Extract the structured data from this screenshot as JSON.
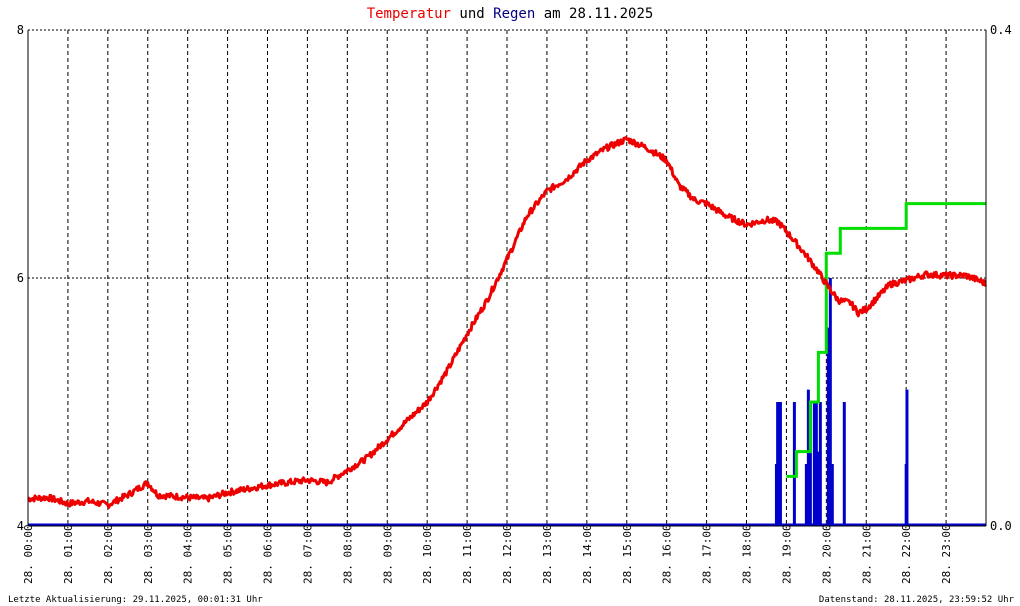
{
  "title": {
    "part1": "Temperatur",
    "part2": " und ",
    "part3": "Regen",
    "part4": " am 28.11.2025",
    "color1": "#ee0000",
    "color2": "#000000",
    "color3": "#000080",
    "color4": "#000000"
  },
  "footer": {
    "left": "Letzte Aktualisierung: 29.11.2025, 00:01:31 Uhr",
    "right": "Datenstand: 28.11.2025, 23:59:52 Uhr"
  },
  "chart_data": {
    "type": "line",
    "y_left": {
      "range": [
        4,
        8
      ],
      "ticks": [
        "4",
        "6",
        "8"
      ]
    },
    "y_right": {
      "range": [
        0.0,
        0.4
      ],
      "ticks": [
        "0.0",
        "0.4"
      ]
    },
    "x_range_hours": [
      0,
      24
    ],
    "x_ticks": [
      "28. 00:00",
      "28. 01:00",
      "28. 02:00",
      "28. 03:00",
      "28. 04:00",
      "28. 05:00",
      "28. 06:00",
      "28. 07:00",
      "28. 08:00",
      "28. 09:00",
      "28. 10:00",
      "28. 11:00",
      "28. 12:00",
      "28. 13:00",
      "28. 14:00",
      "28. 15:00",
      "28. 16:00",
      "28. 17:00",
      "28. 18:00",
      "28. 19:00",
      "28. 20:00",
      "28. 21:00",
      "28. 22:00",
      "28. 23:00"
    ],
    "grid": true,
    "colors": {
      "temperature": "#ee0000",
      "rain_rate": "#0000cc",
      "rain_sum": "#00dd00",
      "grid": "#000000"
    },
    "series": [
      {
        "key": "temperature",
        "axis": "left",
        "points": [
          [
            0.0,
            4.22
          ],
          [
            0.5,
            4.23
          ],
          [
            1.0,
            4.18
          ],
          [
            1.5,
            4.2
          ],
          [
            2.0,
            4.17
          ],
          [
            2.5,
            4.25
          ],
          [
            3.0,
            4.35
          ],
          [
            3.25,
            4.25
          ],
          [
            4.0,
            4.23
          ],
          [
            4.5,
            4.22
          ],
          [
            5.0,
            4.27
          ],
          [
            5.5,
            4.3
          ],
          [
            6.0,
            4.33
          ],
          [
            7.0,
            4.37
          ],
          [
            7.5,
            4.35
          ],
          [
            8.0,
            4.45
          ],
          [
            8.5,
            4.55
          ],
          [
            9.0,
            4.7
          ],
          [
            9.5,
            4.85
          ],
          [
            10.0,
            5.0
          ],
          [
            10.5,
            5.25
          ],
          [
            11.0,
            5.55
          ],
          [
            11.5,
            5.82
          ],
          [
            12.0,
            6.15
          ],
          [
            12.5,
            6.5
          ],
          [
            13.0,
            6.7
          ],
          [
            13.5,
            6.8
          ],
          [
            14.0,
            6.95
          ],
          [
            14.5,
            7.05
          ],
          [
            15.0,
            7.12
          ],
          [
            15.5,
            7.05
          ],
          [
            16.0,
            6.95
          ],
          [
            16.3,
            6.75
          ],
          [
            16.7,
            6.63
          ],
          [
            17.0,
            6.6
          ],
          [
            17.5,
            6.5
          ],
          [
            18.0,
            6.43
          ],
          [
            18.5,
            6.47
          ],
          [
            18.8,
            6.45
          ],
          [
            19.2,
            6.3
          ],
          [
            19.5,
            6.18
          ],
          [
            19.8,
            6.05
          ],
          [
            20.0,
            5.95
          ],
          [
            20.3,
            5.82
          ],
          [
            20.6,
            5.8
          ],
          [
            20.8,
            5.72
          ],
          [
            21.0,
            5.75
          ],
          [
            21.3,
            5.85
          ],
          [
            21.6,
            5.95
          ],
          [
            22.0,
            5.98
          ],
          [
            22.5,
            6.03
          ],
          [
            23.0,
            6.02
          ],
          [
            23.5,
            6.02
          ],
          [
            23.9,
            5.97
          ],
          [
            24.0,
            5.95
          ]
        ]
      },
      {
        "key": "rain_sum",
        "axis": "right",
        "points": [
          [
            19.0,
            0.04
          ],
          [
            19.25,
            0.04
          ],
          [
            19.25,
            0.06
          ],
          [
            19.6,
            0.06
          ],
          [
            19.6,
            0.1
          ],
          [
            19.8,
            0.1
          ],
          [
            19.8,
            0.14
          ],
          [
            20.0,
            0.14
          ],
          [
            20.0,
            0.22
          ],
          [
            20.35,
            0.22
          ],
          [
            20.35,
            0.24
          ],
          [
            22.0,
            0.24
          ],
          [
            22.0,
            0.26
          ],
          [
            24.0,
            0.26
          ]
        ]
      },
      {
        "key": "rain_rate",
        "axis": "right",
        "bars": [
          [
            18.75,
            0.05
          ],
          [
            18.78,
            0.1
          ],
          [
            18.85,
            0.1
          ],
          [
            19.2,
            0.1
          ],
          [
            19.5,
            0.05
          ],
          [
            19.55,
            0.11
          ],
          [
            19.6,
            0.1
          ],
          [
            19.7,
            0.1
          ],
          [
            19.72,
            0.08
          ],
          [
            19.75,
            0.1
          ],
          [
            19.8,
            0.06
          ],
          [
            19.85,
            0.1
          ],
          [
            20.05,
            0.16
          ],
          [
            20.1,
            0.2
          ],
          [
            20.15,
            0.05
          ],
          [
            20.45,
            0.1
          ],
          [
            22.0,
            0.05
          ],
          [
            22.02,
            0.11
          ]
        ]
      }
    ]
  }
}
